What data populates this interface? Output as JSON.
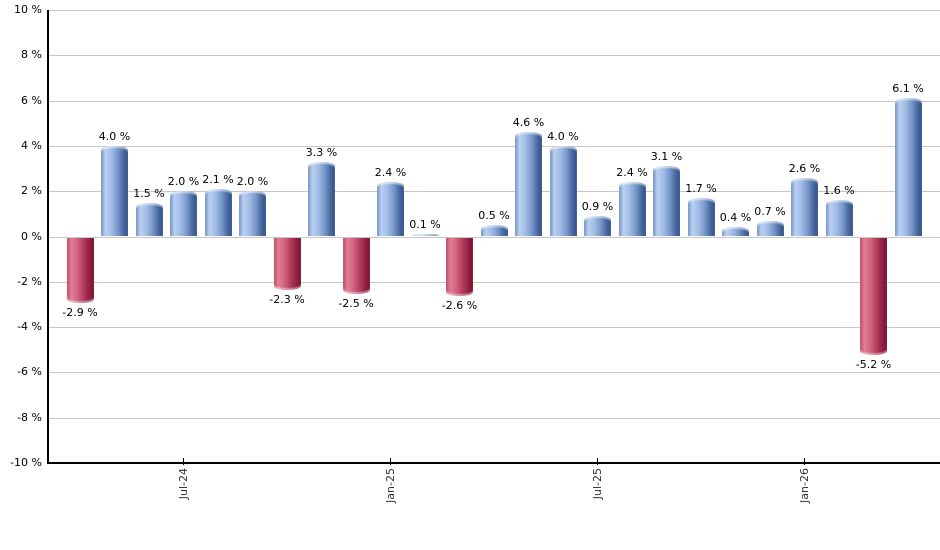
{
  "chart_data": {
    "type": "bar",
    "title": "",
    "xlabel": "",
    "ylabel": "",
    "ylim": [
      -10,
      10
    ],
    "y_tick_step": 2,
    "grid": true,
    "legend": false,
    "values": [
      -2.9,
      4.0,
      1.5,
      2.0,
      2.1,
      2.0,
      -2.3,
      3.3,
      -2.5,
      2.4,
      0.1,
      -2.6,
      0.5,
      4.6,
      4.0,
      0.9,
      2.4,
      3.1,
      1.7,
      0.4,
      0.7,
      2.6,
      1.6,
      -5.2,
      6.1
    ],
    "bar_value_labels": [
      "-2.9 %",
      "4.0 %",
      "1.5 %",
      "2.0 %",
      "2.1 %",
      "2.0 %",
      "-2.3 %",
      "3.3 %",
      "-2.5 %",
      "2.4 %",
      "0.1 %",
      "-2.6 %",
      "0.5 %",
      "4.6 %",
      "4.0 %",
      "0.9 %",
      "2.4 %",
      "3.1 %",
      "1.7 %",
      "0.4 %",
      "0.7 %",
      "2.6 %",
      "1.6 %",
      "-5.2 %",
      "6.1 %"
    ],
    "y_tick_labels": [
      "10 %",
      "8 %",
      "6 %",
      "4 %",
      "2 %",
      "0 %",
      "-2 %",
      "-4 %",
      "-6 %",
      "-8 %",
      "-10 %"
    ],
    "x_ticks": [
      {
        "bar_index": 3,
        "label": "Jul-24"
      },
      {
        "bar_index": 9,
        "label": "Jan-25"
      },
      {
        "bar_index": 15,
        "label": "Jul-25"
      },
      {
        "bar_index": 21,
        "label": "Jan-26"
      }
    ],
    "colors": {
      "positive_gradient_stops": [
        "#7090c2 0%",
        "#b9d0f0 16%",
        "#a2bde6 38%",
        "#7897ca 62%",
        "#47689f 84%",
        "#35508a 100%"
      ],
      "negative_gradient_stops": [
        "#c04868 0%",
        "#e07d95 16%",
        "#d2647f 38%",
        "#b23c5e 62%",
        "#8f2040 84%",
        "#7d1031 100%"
      ],
      "gridline": "#c6c6c6",
      "axis": "#000000",
      "value_label_text": "#000000",
      "tick_label_text": "#333333"
    }
  }
}
